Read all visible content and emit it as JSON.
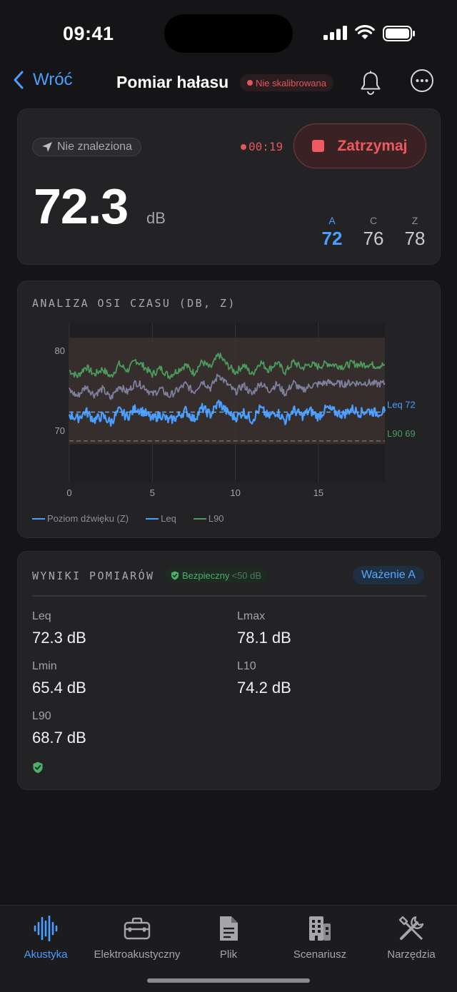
{
  "status_bar": {
    "time": "09:41"
  },
  "nav": {
    "back_label": "Wróć",
    "title": "Pomiar hałasu",
    "calibration_badge": "Nie skalibrowana"
  },
  "live": {
    "location_label": "Nie znaleziona",
    "elapsed": "00:19",
    "stop_label": "Zatrzymaj",
    "level": "72.3",
    "unit": "dB",
    "weightings": [
      {
        "label": "A",
        "value": "72",
        "active": true
      },
      {
        "label": "C",
        "value": "76",
        "active": false
      },
      {
        "label": "Z",
        "value": "78",
        "active": false
      }
    ]
  },
  "chart_data": {
    "type": "line",
    "title": "ANALIZA OSI CZASU (DB, Z)",
    "x_range": [
      0,
      19
    ],
    "x_ticks": [
      "0",
      "5",
      "10",
      "15"
    ],
    "x_tick_values": [
      0,
      5,
      10,
      15
    ],
    "y_range": [
      63.5,
      83.5
    ],
    "y_ticks": [
      "80",
      "70"
    ],
    "y_tick_values": [
      80,
      70
    ],
    "grid": true,
    "band": {
      "low": 68.3,
      "high": 81.6
    },
    "series": [
      {
        "name": "Poziom dźwięku (Z)",
        "color": "#4a9eff",
        "x": [
          0,
          0.5,
          1,
          1.5,
          2,
          2.5,
          3,
          3.5,
          4,
          4.5,
          5,
          5.5,
          6,
          6.5,
          7,
          7.5,
          8,
          8.5,
          9,
          9.5,
          10,
          10.5,
          11,
          11.5,
          12,
          12.5,
          13,
          13.5,
          14,
          14.5,
          15,
          15.5,
          16,
          16.5,
          17,
          17.5,
          18,
          18.5,
          19
        ],
        "values": [
          72.0,
          71.5,
          72.4,
          71.3,
          71.8,
          71.0,
          72.5,
          71.7,
          72.8,
          72.3,
          71.4,
          72.0,
          71.2,
          71.7,
          72.5,
          71.4,
          72.8,
          72.0,
          73.5,
          72.3,
          71.6,
          72.3,
          71.3,
          72.8,
          71.7,
          72.4,
          71.2,
          72.6,
          71.8,
          72.5,
          71.7,
          72.8,
          72.3,
          72.0,
          72.7,
          72.2,
          72.5,
          72.2,
          72.4
        ]
      },
      {
        "name": "",
        "color": "#7d7f9c",
        "x": [
          0,
          0.5,
          1,
          1.5,
          2,
          2.5,
          3,
          3.5,
          4,
          4.5,
          5,
          5.5,
          6,
          6.5,
          7,
          7.5,
          8,
          8.5,
          9,
          9.5,
          10,
          10.5,
          11,
          11.5,
          12,
          12.5,
          13,
          13.5,
          14,
          14.5,
          15,
          15.5,
          16,
          16.5,
          17,
          17.5,
          18,
          18.5,
          19
        ],
        "values": [
          75.0,
          74.3,
          75.5,
          74.5,
          75.2,
          74.0,
          75.6,
          74.8,
          76.0,
          75.5,
          74.5,
          75.2,
          74.3,
          75.0,
          75.8,
          74.8,
          76.2,
          75.3,
          77.0,
          75.8,
          74.8,
          75.7,
          74.5,
          76.0,
          75.0,
          75.8,
          74.6,
          76.0,
          75.0,
          75.6,
          75.8,
          76.0,
          75.9,
          75.8,
          76.0,
          75.9,
          76.0,
          75.8,
          75.9
        ]
      },
      {
        "name": "",
        "color": "#4c9a5c",
        "x": [
          0,
          0.5,
          1,
          1.5,
          2,
          2.5,
          3,
          3.5,
          4,
          4.5,
          5,
          5.5,
          6,
          6.5,
          7,
          7.5,
          8,
          8.5,
          9,
          9.5,
          10,
          10.5,
          11,
          11.5,
          12,
          12.5,
          13,
          13.5,
          14,
          14.5,
          15,
          15.5,
          16,
          16.5,
          17,
          17.5,
          18,
          18.5,
          19
        ],
        "values": [
          77.5,
          76.8,
          78.0,
          77.0,
          77.7,
          76.7,
          78.3,
          77.5,
          78.8,
          78.0,
          77.0,
          77.8,
          76.8,
          77.5,
          78.2,
          77.2,
          78.6,
          77.8,
          79.5,
          78.2,
          77.3,
          78.2,
          77.0,
          78.6,
          77.6,
          78.5,
          77.3,
          78.6,
          77.8,
          78.3,
          78.0,
          78.4,
          78.2,
          78.0,
          78.4,
          78.2,
          78.3,
          78.1,
          78.2
        ]
      },
      {
        "name": "Leq",
        "color": "#4a9eff",
        "values": [
          72.3
        ],
        "label": "Leq 72"
      },
      {
        "name": "L90",
        "color": "#4c9a5c",
        "values": [
          68.7
        ],
        "label": "L90 69"
      }
    ]
  },
  "results": {
    "title": "WYNIKI POMIARÓW",
    "safe_label": "Bezpieczny",
    "safe_sub": "<50 dB",
    "weighting_label": "Ważenie A",
    "metrics": [
      {
        "label": "Leq",
        "value": "72.3 dB"
      },
      {
        "label": "Lmax",
        "value": "78.1 dB"
      },
      {
        "label": "Lmin",
        "value": "65.4 dB"
      },
      {
        "label": "L10",
        "value": "74.2 dB"
      },
      {
        "label": "L90",
        "value": "68.7 dB"
      }
    ]
  },
  "tabs": [
    {
      "label": "Akustyka",
      "icon": "waveform-icon",
      "active": true
    },
    {
      "label": "Elektroakustyczny",
      "icon": "toolbox-icon",
      "active": false
    },
    {
      "label": "Plik",
      "icon": "document-icon",
      "active": false
    },
    {
      "label": "Scenariusz",
      "icon": "building-icon",
      "active": false
    },
    {
      "label": "Narzędzia",
      "icon": "tools-icon",
      "active": false
    }
  ],
  "colors": {
    "accent": "#4a9eff",
    "danger": "#ef5a60",
    "safe": "#4caf6a"
  }
}
